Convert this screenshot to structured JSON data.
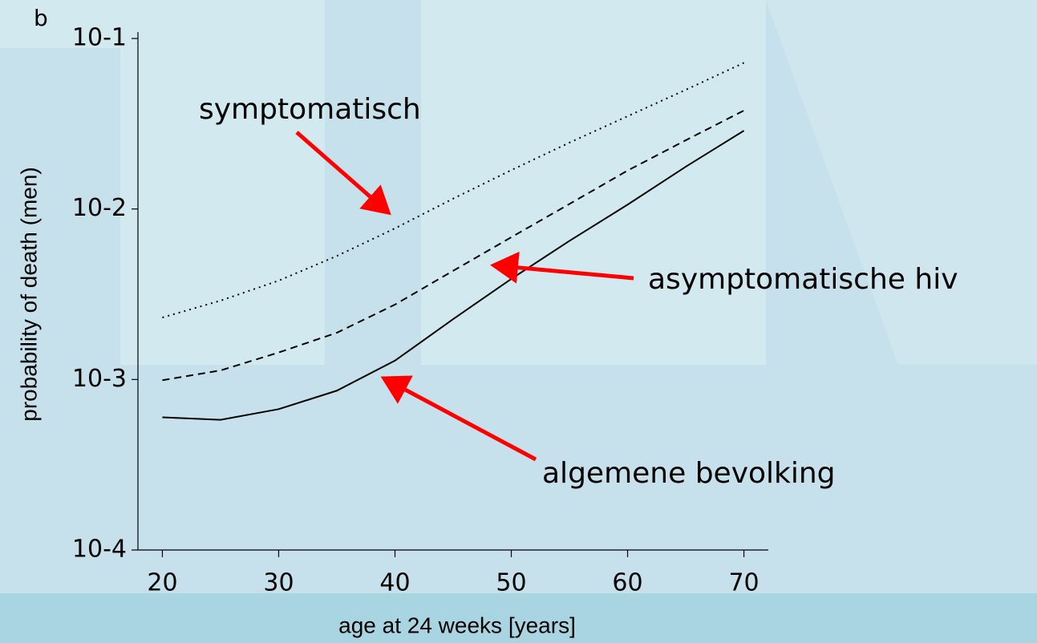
{
  "chart_data": {
    "type": "line",
    "title": "b",
    "x_label": "age at 24 weeks [years]",
    "y_label": "probability of death (men)",
    "x": [
      20,
      25,
      30,
      35,
      40,
      45,
      50,
      55,
      60,
      65,
      70
    ],
    "series": [
      {
        "name": "symptomatisch",
        "color": "#000000",
        "dash": "dotted",
        "values": [
          0.00231,
          0.0029,
          0.0038,
          0.0053,
          0.0077,
          0.0115,
          0.0169,
          0.0245,
          0.035,
          0.05,
          0.072
        ]
      },
      {
        "name": "asymptomatische hiv",
        "color": "#000000",
        "dash": "dashed",
        "values": [
          0.00099,
          0.00113,
          0.00144,
          0.00188,
          0.00275,
          0.00434,
          0.00683,
          0.0107,
          0.0168,
          0.0253,
          0.0378
        ]
      },
      {
        "name": "algemene bevolking",
        "color": "#000000",
        "dash": "solid",
        "values": [
          0.0006,
          0.00058,
          0.00067,
          0.00086,
          0.00129,
          0.00226,
          0.00389,
          0.0065,
          0.0106,
          0.0177,
          0.0288
        ]
      }
    ],
    "annotation_color": "#ff0000",
    "xlim": [
      17.9,
      72.1
    ],
    "xticks": [
      20,
      30,
      40,
      50,
      60,
      70
    ],
    "ylim": [
      0.0001,
      0.1
    ],
    "ylog": true,
    "yticks": [
      {
        "value": 0.0001,
        "label": "10-4"
      },
      {
        "value": 0.001,
        "label": "10-3"
      },
      {
        "value": 0.01,
        "label": "10-2"
      },
      {
        "value": 0.1,
        "label": "10-1"
      }
    ]
  }
}
